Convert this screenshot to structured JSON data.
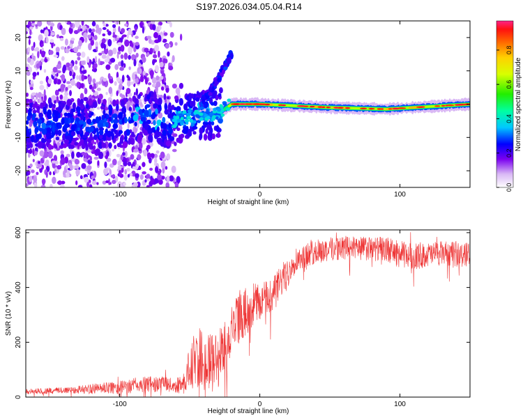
{
  "title": "S197.2026.034.05.04.R14",
  "chart_data": [
    {
      "type": "heatmap",
      "xlabel": "Height of straight line (km)",
      "ylabel": "Frequency (Hz)",
      "xlim": [
        -167,
        150
      ],
      "ylim": [
        -25,
        25
      ],
      "xticks": [
        -100,
        0,
        100
      ],
      "yticks": [
        -20,
        -10,
        0,
        10,
        20
      ],
      "colorbar": {
        "label": "Normalized spectral amplitude",
        "range": [
          0,
          0.97
        ],
        "ticks": [
          "0.0",
          "0.2",
          "0.4",
          "0.6",
          "0.8"
        ],
        "tick_values": [
          0,
          0.2,
          0.4,
          0.6,
          0.8
        ]
      },
      "ridge": [
        {
          "x": -125,
          "y": -6
        },
        {
          "x": -100,
          "y": -6
        },
        {
          "x": -80,
          "y": -3
        },
        {
          "x": -65,
          "y": -6
        },
        {
          "x": -55,
          "y": -4
        },
        {
          "x": -40,
          "y": -3
        },
        {
          "x": -30,
          "y": -3
        },
        {
          "x": -20,
          "y": 0
        },
        {
          "x": 0,
          "y": 0
        },
        {
          "x": 50,
          "y": -1
        },
        {
          "x": 90,
          "y": -1.5
        },
        {
          "x": 150,
          "y": 0
        }
      ],
      "upper_branch": [
        {
          "x": -42,
          "y": 0
        },
        {
          "x": -35,
          "y": 4
        },
        {
          "x": -28,
          "y": 9
        },
        {
          "x": -20,
          "y": 15
        }
      ]
    },
    {
      "type": "line",
      "xlabel": "Height of straight line (km)",
      "ylabel": "SNR (10 * v/v)",
      "xlim": [
        -167,
        150
      ],
      "ylim": [
        0,
        610
      ],
      "xticks": [
        -100,
        0,
        100
      ],
      "yticks": [
        0,
        200,
        400,
        600
      ],
      "series": [
        {
          "name": "SNR",
          "color": "#ee3333",
          "x": [
            -167,
            -140,
            -120,
            -100,
            -85,
            -70,
            -60,
            -55,
            -50,
            -45,
            -40,
            -35,
            -30,
            -25,
            -20,
            -15,
            -10,
            -5,
            0,
            5,
            10,
            15,
            20,
            25,
            30,
            40,
            50,
            60,
            70,
            80,
            90,
            100,
            110,
            120,
            130,
            140,
            150
          ],
          "mean": [
            20,
            25,
            30,
            35,
            45,
            50,
            40,
            50,
            100,
            150,
            130,
            120,
            140,
            180,
            250,
            290,
            310,
            340,
            350,
            360,
            380,
            420,
            460,
            500,
            510,
            530,
            540,
            545,
            545,
            540,
            540,
            520,
            515,
            520,
            525,
            520,
            520
          ],
          "noise": [
            10,
            12,
            18,
            25,
            30,
            30,
            25,
            40,
            80,
            120,
            110,
            110,
            110,
            110,
            100,
            90,
            90,
            80,
            70,
            70,
            70,
            60,
            55,
            50,
            45,
            45,
            45,
            45,
            45,
            45,
            45,
            50,
            50,
            45,
            45,
            45,
            45
          ]
        }
      ]
    }
  ]
}
